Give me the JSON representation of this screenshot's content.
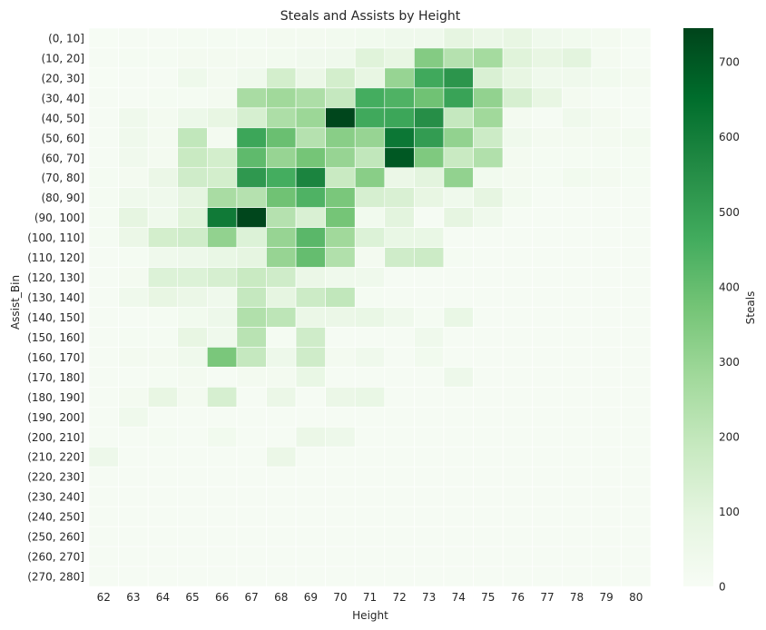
{
  "chart_data": {
    "type": "heatmap",
    "title": "Steals and Assists by Height",
    "xlabel": "Height",
    "ylabel": "Assist_Bin",
    "colorbar_label": "Steals",
    "x_categories": [
      "62",
      "63",
      "64",
      "65",
      "66",
      "67",
      "68",
      "69",
      "70",
      "71",
      "72",
      "73",
      "74",
      "75",
      "76",
      "77",
      "78",
      "79",
      "80"
    ],
    "y_categories": [
      "(0, 10]",
      "(10, 20]",
      "(20, 30]",
      "(30, 40]",
      "(40, 50]",
      "(50, 60]",
      "(60, 70]",
      "(70, 80]",
      "(80, 90]",
      "(90, 100]",
      "(100, 110]",
      "(110, 120]",
      "(120, 130]",
      "(130, 140]",
      "(140, 150]",
      "(150, 160]",
      "(160, 170]",
      "(170, 180]",
      "(180, 190]",
      "(190, 200]",
      "(200, 210]",
      "(210, 220]",
      "(220, 230]",
      "(230, 240]",
      "(240, 250]",
      "(250, 260]",
      "(260, 270]",
      "(270, 280]"
    ],
    "values": [
      [
        5,
        10,
        10,
        15,
        15,
        15,
        20,
        20,
        25,
        30,
        40,
        40,
        90,
        60,
        80,
        40,
        30,
        20,
        10
      ],
      [
        10,
        15,
        15,
        20,
        20,
        20,
        25,
        35,
        40,
        110,
        80,
        340,
        230,
        270,
        110,
        80,
        100,
        20,
        10
      ],
      [
        5,
        10,
        10,
        45,
        20,
        40,
        150,
        60,
        150,
        80,
        300,
        470,
        530,
        130,
        80,
        40,
        40,
        30,
        20
      ],
      [
        10,
        10,
        15,
        15,
        20,
        260,
        280,
        250,
        190,
        460,
        440,
        380,
        490,
        310,
        140,
        80,
        20,
        10,
        10
      ],
      [
        10,
        40,
        20,
        55,
        80,
        140,
        250,
        290,
        740,
        470,
        480,
        550,
        190,
        280,
        20,
        10,
        40,
        20,
        10
      ],
      [
        10,
        40,
        20,
        200,
        20,
        480,
        390,
        230,
        330,
        300,
        620,
        510,
        310,
        170,
        40,
        20,
        20,
        20,
        25
      ],
      [
        10,
        35,
        20,
        180,
        150,
        410,
        300,
        370,
        300,
        200,
        700,
        350,
        180,
        240,
        20,
        15,
        15,
        15,
        15
      ],
      [
        15,
        20,
        60,
        160,
        150,
        520,
        460,
        580,
        180,
        330,
        60,
        100,
        310,
        30,
        20,
        15,
        30,
        20,
        15
      ],
      [
        15,
        40,
        40,
        90,
        260,
        230,
        380,
        440,
        360,
        140,
        130,
        80,
        40,
        90,
        25,
        10,
        10,
        10,
        10
      ],
      [
        15,
        90,
        40,
        110,
        610,
        740,
        230,
        130,
        370,
        30,
        100,
        10,
        90,
        40,
        10,
        10,
        10,
        10,
        10
      ],
      [
        15,
        60,
        150,
        160,
        310,
        120,
        300,
        420,
        280,
        120,
        70,
        70,
        10,
        10,
        10,
        10,
        10,
        10,
        10
      ],
      [
        10,
        15,
        40,
        50,
        70,
        90,
        300,
        400,
        240,
        20,
        160,
        170,
        15,
        10,
        10,
        10,
        10,
        10,
        10
      ],
      [
        10,
        20,
        120,
        120,
        140,
        180,
        160,
        60,
        40,
        40,
        10,
        10,
        10,
        10,
        10,
        10,
        10,
        10,
        10
      ],
      [
        10,
        40,
        80,
        60,
        40,
        190,
        90,
        170,
        200,
        15,
        10,
        10,
        10,
        10,
        10,
        10,
        10,
        10,
        10
      ],
      [
        10,
        10,
        15,
        30,
        50,
        240,
        210,
        60,
        60,
        70,
        40,
        15,
        70,
        10,
        10,
        10,
        10,
        10,
        10
      ],
      [
        10,
        15,
        15,
        80,
        40,
        220,
        15,
        160,
        10,
        10,
        10,
        40,
        10,
        10,
        10,
        10,
        10,
        10,
        10
      ],
      [
        10,
        20,
        20,
        40,
        360,
        190,
        50,
        160,
        20,
        40,
        10,
        30,
        10,
        10,
        10,
        10,
        10,
        10,
        10
      ],
      [
        10,
        10,
        15,
        20,
        10,
        20,
        20,
        70,
        10,
        10,
        10,
        10,
        50,
        10,
        10,
        10,
        10,
        10,
        10
      ],
      [
        10,
        20,
        80,
        20,
        140,
        10,
        60,
        10,
        60,
        70,
        10,
        10,
        10,
        10,
        10,
        10,
        10,
        10,
        10
      ],
      [
        10,
        40,
        10,
        10,
        10,
        10,
        10,
        10,
        10,
        10,
        10,
        10,
        10,
        10,
        10,
        10,
        10,
        10,
        10
      ],
      [
        10,
        10,
        15,
        10,
        30,
        10,
        10,
        60,
        50,
        10,
        10,
        10,
        10,
        10,
        10,
        10,
        10,
        10,
        10
      ],
      [
        50,
        10,
        10,
        10,
        10,
        10,
        60,
        10,
        10,
        10,
        10,
        10,
        10,
        10,
        10,
        10,
        10,
        10,
        10
      ],
      [
        10,
        10,
        10,
        10,
        10,
        10,
        10,
        10,
        10,
        10,
        10,
        10,
        10,
        10,
        10,
        10,
        10,
        10,
        10
      ],
      [
        10,
        10,
        10,
        10,
        10,
        10,
        10,
        10,
        10,
        10,
        10,
        10,
        10,
        10,
        10,
        10,
        10,
        10,
        10
      ],
      [
        10,
        10,
        10,
        10,
        10,
        10,
        10,
        10,
        10,
        10,
        10,
        10,
        10,
        10,
        10,
        10,
        10,
        10,
        10
      ],
      [
        10,
        10,
        10,
        10,
        10,
        10,
        10,
        10,
        10,
        10,
        10,
        10,
        10,
        10,
        10,
        10,
        10,
        10,
        10
      ],
      [
        10,
        10,
        10,
        10,
        10,
        10,
        10,
        10,
        10,
        10,
        10,
        10,
        10,
        10,
        10,
        10,
        10,
        10,
        10
      ],
      [
        10,
        10,
        10,
        10,
        10,
        10,
        10,
        10,
        10,
        10,
        10,
        10,
        10,
        10,
        10,
        10,
        10,
        10,
        10
      ]
    ],
    "vmin": 0,
    "vmax": 745,
    "colorbar_ticks": [
      0,
      100,
      200,
      300,
      400,
      500,
      600,
      700
    ],
    "colormap": "Greens",
    "grid": true
  }
}
